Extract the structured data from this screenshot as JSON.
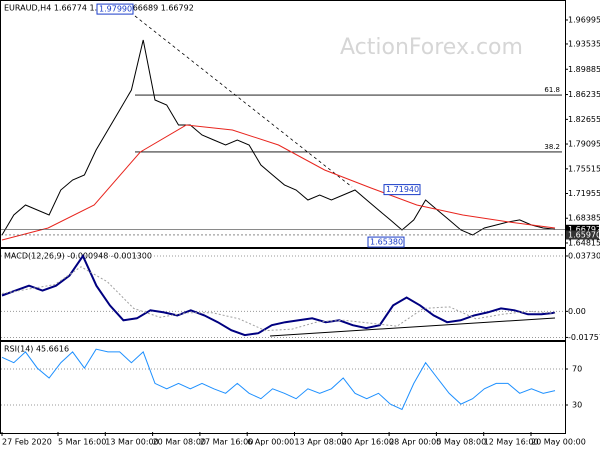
{
  "chart_data": [
    {
      "type": "line",
      "title": "EURAUD,H4  1.66774 1.66925 1.66689 1.66792",
      "ylim": [
        1.6438,
        1.9959
      ],
      "yticks": [
        1.96995,
        1.93535,
        1.89885,
        1.86235,
        1.82655,
        1.79095,
        1.75515,
        1.71955,
        1.68385,
        1.64815
      ],
      "series": [
        {
          "color": "#000000",
          "values": [
            1.6597,
            1.6886,
            1.703,
            1.6958,
            1.6886,
            1.7246,
            1.7391,
            1.7463,
            1.7824,
            1.8112,
            1.8401,
            1.8689,
            1.9411,
            1.8545,
            1.8473,
            1.8184,
            1.8184,
            1.804,
            1.7968,
            1.7896,
            1.7968,
            1.7896,
            1.7607,
            1.7463,
            1.7319,
            1.7246,
            1.7102,
            1.7174,
            1.7102,
            1.7174,
            1.7246,
            1.7102,
            1.6958,
            1.6814,
            1.6669,
            1.6814,
            1.7102,
            1.6958,
            1.6814,
            1.6669,
            1.6597,
            1.6698,
            1.6741,
            1.6785,
            1.6814,
            1.6741,
            1.6698,
            1.6679
          ]
        },
        {
          "color": "#e8251e",
          "values": [
            1.6525,
            1.6698,
            1.703,
            1.7795,
            1.8184,
            1.8112,
            1.7896,
            1.7535,
            1.7276,
            1.703,
            1.6886,
            1.6785,
            1.6698
          ]
        }
      ],
      "fib_levels": [
        {
          "value": 1.8616,
          "label": "61.8"
        },
        {
          "value": 1.7795,
          "label": "38.2"
        }
      ],
      "annotations": [
        {
          "value": 1.9799,
          "label": "1.97990"
        },
        {
          "value": 1.7194,
          "label": "1.71940"
        },
        {
          "value": 1.6538,
          "label": "1.65380"
        }
      ],
      "price_markers": [
        {
          "value": 1.66792,
          "label": "1.66792"
        },
        {
          "value": 1.6597,
          "label": "1.65970"
        }
      ],
      "watermark": "ActionForex.com"
    },
    {
      "type": "line",
      "title": "MACD(12,26,9) -0.000948 -0.001300",
      "ylim": [
        -0.0193,
        0.042
      ],
      "yticks": [
        0.037301,
        {
          "value": 0,
          "label": "0.00"
        },
        -0.017577
      ],
      "series": [
        {
          "color": "#000080",
          "values": [
            0.0107,
            0.014,
            0.0173,
            0.014,
            0.0173,
            0.024,
            0.0373,
            0.0173,
            0.004,
            -0.006,
            -0.0047,
            0.0007,
            -0.0007,
            -0.0027,
            0.0007,
            -0.0027,
            -0.0073,
            -0.0127,
            -0.016,
            -0.0147,
            -0.0093,
            -0.0073,
            -0.006,
            -0.0047,
            -0.0073,
            -0.006,
            -0.0093,
            -0.0113,
            -0.0093,
            0.004,
            0.0093,
            0.004,
            -0.0027,
            -0.0073,
            -0.006,
            -0.0027,
            -0.0007,
            0.002,
            0.0007,
            -0.002,
            -0.002,
            -0.0009
          ]
        },
        {
          "color": "#a0a0a0",
          "values": [
            0.012,
            0.015,
            0.018,
            0.03,
            0.02,
            0.002,
            -0.004,
            -0.001,
            -0.001,
            -0.005,
            -0.013,
            -0.012,
            -0.007,
            -0.006,
            -0.008,
            -0.01,
            0.002,
            0.003,
            -0.005,
            -0.002,
            0.0,
            -0.0013
          ]
        }
      ]
    },
    {
      "type": "line",
      "title": "RSI(14) 45.6616",
      "ylim": [
        0,
        100
      ],
      "yticks": [
        70,
        30
      ],
      "series": [
        {
          "color": "#1e90ff",
          "values": [
            83,
            77,
            89,
            71,
            60,
            77,
            89,
            71,
            92,
            89,
            89,
            77,
            89,
            54,
            48,
            54,
            48,
            54,
            48,
            43,
            54,
            43,
            37,
            48,
            43,
            37,
            48,
            43,
            48,
            60,
            43,
            37,
            43,
            31,
            25,
            54,
            77,
            60,
            43,
            31,
            37,
            48,
            54,
            54,
            43,
            48,
            43,
            46
          ]
        }
      ],
      "x_labels": [
        "27 Feb 2020",
        "5 Mar 16:00",
        "13 Mar 00:00",
        "20 Mar 08:00",
        "27 Mar 16:00",
        "6 Apr 00:00",
        "13 Apr 08:00",
        "20 Apr 16:00",
        "28 Apr 00:00",
        "5 May 08:00",
        "12 May 16:00",
        "20 May 00:00"
      ]
    }
  ]
}
